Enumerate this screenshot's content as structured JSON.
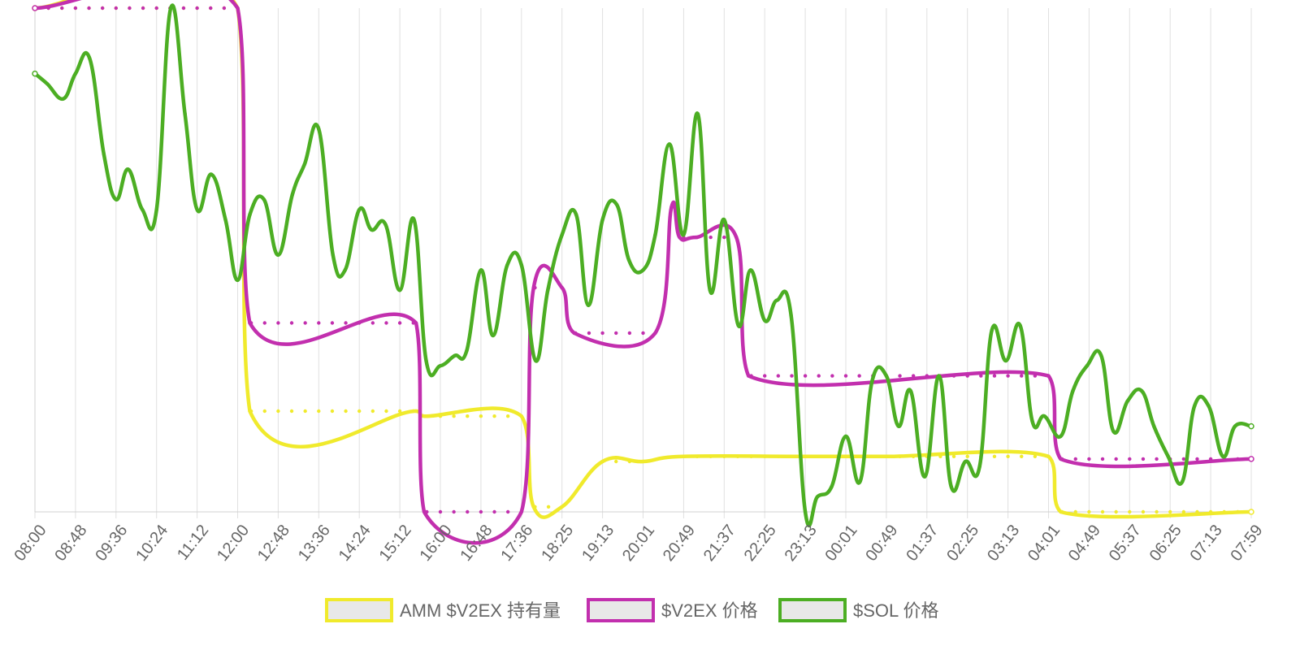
{
  "colors": {
    "amm": "#f0ea2c",
    "v2ex": "#c22fae",
    "sol": "#4cae23",
    "grid": "#e0e0e0",
    "legend_fill": "#e8e8e8",
    "tick_text": "#666666"
  },
  "chart_data": {
    "type": "line",
    "title": "",
    "xlabel": "",
    "ylabel": "",
    "y_axis_visible": false,
    "ylim": [
      0,
      100
    ],
    "grid": "vertical",
    "legend_position": "bottom",
    "categories": [
      "08:00",
      "08:48",
      "09:36",
      "10:24",
      "11:12",
      "12:00",
      "12:48",
      "13:36",
      "14:24",
      "15:12",
      "16:00",
      "16:48",
      "17:36",
      "18:25",
      "19:13",
      "20:01",
      "20:49",
      "21:37",
      "22:25",
      "23:13",
      "00:01",
      "00:49",
      "01:37",
      "02:25",
      "03:13",
      "04:01",
      "04:49",
      "05:37",
      "06:25",
      "07:13",
      "07:59"
    ],
    "series": [
      {
        "name": "AMM $V2EX 持有量",
        "color": "#f0ea2c",
        "x": [
          0,
          5,
          5.3,
          9.4,
          9.6,
          12,
          12.3,
          13,
          14,
          15,
          16,
          19,
          21,
          25,
          25.3,
          30
        ],
        "y": [
          100,
          100,
          20,
          20,
          19,
          19,
          1,
          1,
          10,
          10,
          11,
          11,
          11,
          11,
          0,
          0
        ]
      },
      {
        "name": "$V2EX 价格",
        "color": "#c22fae",
        "x": [
          0,
          5,
          5.3,
          9.4,
          9.6,
          12,
          12.3,
          13,
          13.3,
          15.3,
          15.7,
          15.9,
          16.3,
          17.3,
          17.6,
          25,
          25.3,
          30
        ],
        "y": [
          100,
          100,
          37.5,
          37.5,
          0,
          0,
          44.5,
          44.5,
          35.5,
          35.5,
          60.5,
          54.5,
          54.5,
          54.5,
          27,
          27,
          10.5,
          10.5
        ]
      },
      {
        "name": "$SOL 价格",
        "color": "#4cae23",
        "x": [
          0,
          0.3,
          0.7,
          1,
          1.35,
          1.7,
          2,
          2.3,
          2.65,
          3,
          3.35,
          3.7,
          4,
          4.35,
          4.7,
          5,
          5.3,
          5.65,
          6,
          6.35,
          6.65,
          7,
          7.35,
          7.65,
          8,
          8.3,
          8.65,
          9,
          9.35,
          9.65,
          10,
          10.35,
          10.65,
          11,
          11.3,
          11.65,
          12,
          12.35,
          12.65,
          13,
          13.35,
          13.65,
          14,
          14.35,
          14.65,
          15,
          15.3,
          15.65,
          16,
          16.35,
          16.65,
          17,
          17.35,
          17.65,
          18,
          18.3,
          18.65,
          19,
          19.3,
          19.65,
          20,
          20.35,
          20.65,
          21,
          21.3,
          21.6,
          21.95,
          22.3,
          22.6,
          22.95,
          23.3,
          23.6,
          23.95,
          24.3,
          24.6,
          24.9,
          25.3,
          25.6,
          25.95,
          26.3,
          26.6,
          26.95,
          27.3,
          27.6,
          27.95,
          28.3,
          28.6,
          28.95,
          29.3,
          29.6,
          30
        ],
        "y": [
          87,
          85,
          82,
          87,
          90,
          71,
          62,
          68,
          60,
          60,
          100,
          79,
          60,
          67,
          58,
          46,
          59,
          62,
          51,
          63,
          69,
          76,
          51,
          48,
          60,
          56,
          57,
          44,
          58,
          30,
          29,
          31,
          32,
          48,
          35,
          49,
          49,
          30,
          44,
          55,
          59,
          41,
          58,
          61,
          50,
          48,
          55,
          73,
          55,
          79,
          44,
          58,
          37,
          48,
          38,
          42,
          39,
          0,
          3,
          5,
          15,
          6,
          26,
          27,
          17,
          24,
          7,
          27,
          5,
          10,
          9,
          36,
          30,
          37,
          18,
          19,
          15,
          24,
          29,
          31,
          16,
          22,
          24,
          17,
          11,
          6,
          21,
          21,
          11,
          17,
          17
        ]
      }
    ]
  }
}
